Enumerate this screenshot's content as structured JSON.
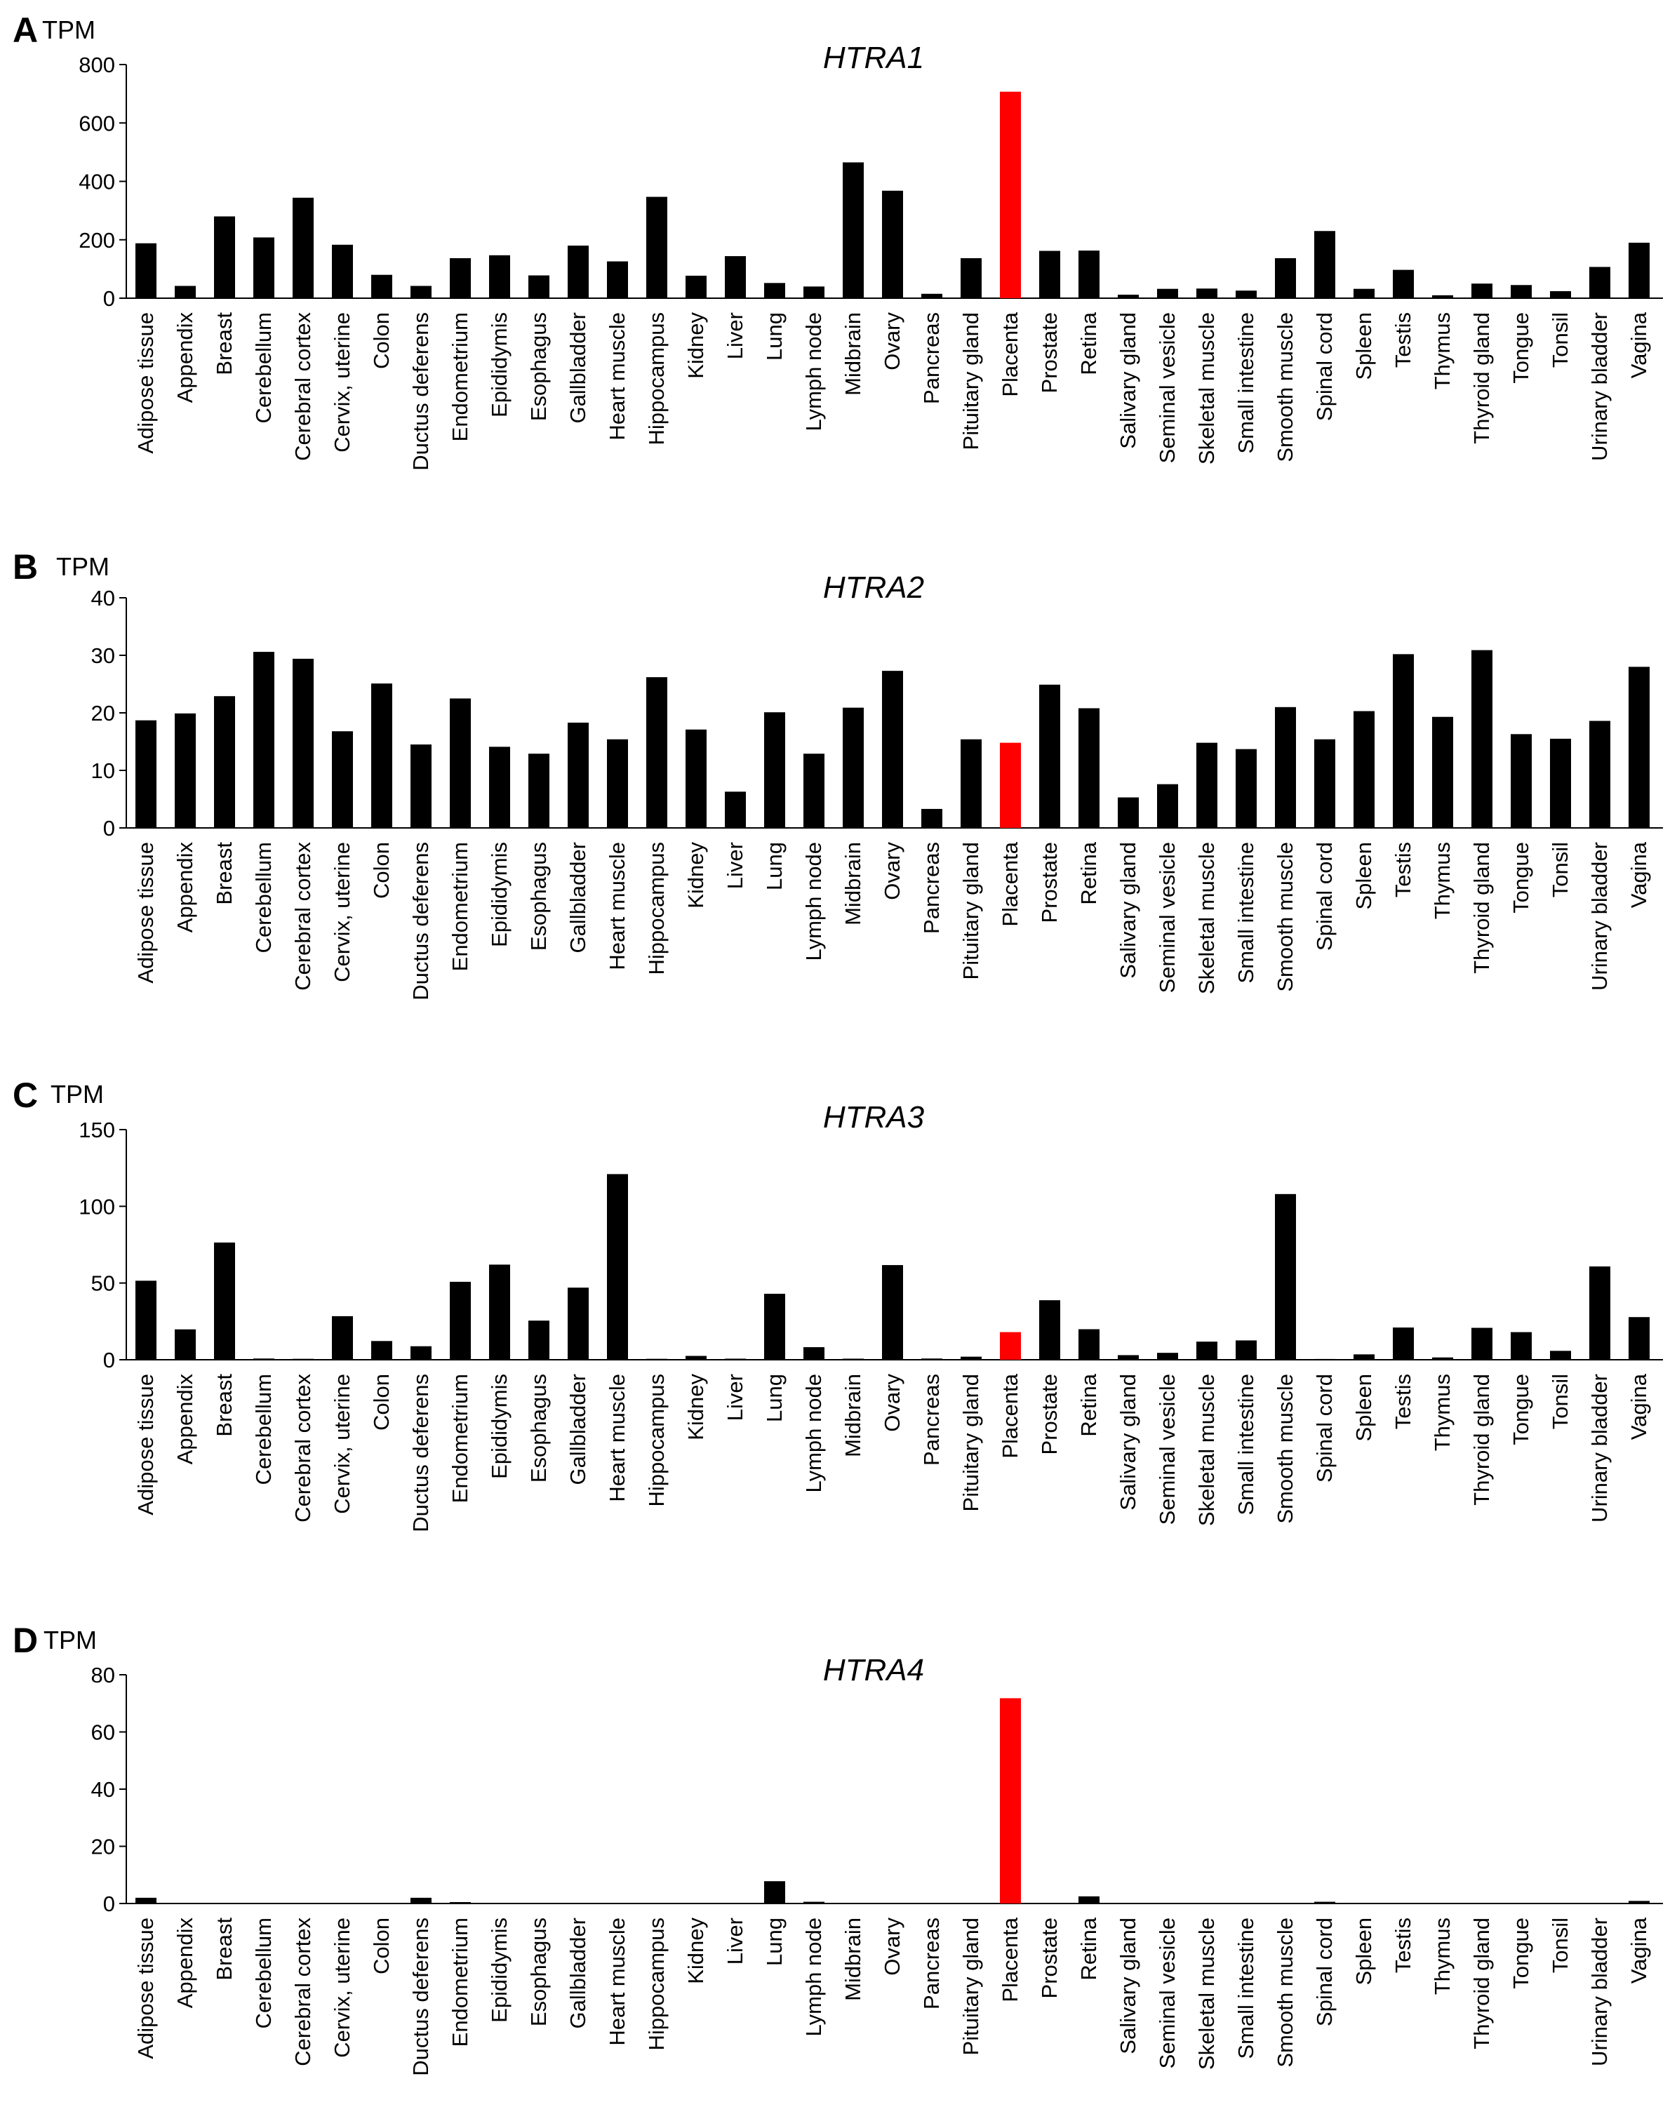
{
  "figure": {
    "categories": [
      "Adipose tissue",
      "Appendix",
      "Breast",
      "Cerebellum",
      "Cerebral cortex",
      "Cervix, uterine",
      "Colon",
      "Ductus deferens",
      "Endometrium",
      "Epididymis",
      "Esophagus",
      "Gallbladder",
      "Heart muscle",
      "Hippocampus",
      "Kidney",
      "Liver",
      "Lung",
      "Lymph node",
      "Midbrain",
      "Ovary",
      "Pancreas",
      "Pituitary gland",
      "Placenta",
      "Prostate",
      "Retina",
      "Salivary gland",
      "Seminal vesicle",
      "Skeletal muscle",
      "Small intestine",
      "Smooth muscle",
      "Spinal cord",
      "Spleen",
      "Testis",
      "Thymus",
      "Thyroid gland",
      "Tongue",
      "Tonsil",
      "Urinary bladder",
      "Vagina"
    ],
    "highlight_category": "Placenta",
    "colors": {
      "bar": "#000000",
      "highlight": "#ff0000",
      "axis": "#000000"
    }
  },
  "chart_data": [
    {
      "type": "bar",
      "panel": "A",
      "title": "HTRA1",
      "ylabel": "TPM",
      "xlabel": "",
      "ylim": [
        0,
        800
      ],
      "yticks": [
        0,
        200,
        400,
        600,
        800
      ],
      "values": [
        188,
        42,
        280,
        208,
        344,
        183,
        80,
        42,
        137,
        147,
        78,
        180,
        126,
        347,
        77,
        144,
        52,
        40,
        465,
        368,
        15,
        137,
        707,
        162,
        163,
        12,
        32,
        33,
        26,
        137,
        230,
        32,
        97,
        10,
        50,
        45,
        24,
        107,
        190
      ]
    },
    {
      "type": "bar",
      "panel": "B",
      "title": "HTRA2",
      "ylabel": "TPM",
      "xlabel": "",
      "ylim": [
        0,
        40
      ],
      "yticks": [
        0,
        10,
        20,
        30,
        40
      ],
      "values": [
        18.7,
        19.9,
        22.9,
        30.6,
        29.4,
        16.8,
        25.1,
        14.5,
        22.5,
        14.1,
        12.9,
        18.3,
        15.4,
        26.2,
        17.1,
        6.3,
        20.1,
        12.9,
        20.9,
        27.3,
        3.3,
        15.4,
        14.8,
        24.9,
        20.8,
        5.3,
        7.6,
        14.8,
        13.7,
        21.0,
        15.4,
        20.3,
        30.2,
        19.3,
        30.9,
        16.3,
        15.5,
        18.6,
        28.0
      ]
    },
    {
      "type": "bar",
      "panel": "C",
      "title": "HTRA3",
      "ylabel": "TPM",
      "xlabel": "",
      "ylim": [
        0,
        150
      ],
      "yticks": [
        0,
        50,
        100,
        150
      ],
      "values": [
        51.5,
        19.8,
        76.4,
        0.8,
        0.6,
        28.4,
        12.2,
        8.8,
        50.8,
        62.0,
        25.5,
        47.0,
        121.0,
        0.6,
        2.5,
        0.7,
        43.0,
        8.2,
        0.7,
        61.7,
        0.8,
        2.0,
        18.0,
        38.8,
        19.9,
        3.0,
        4.5,
        11.8,
        12.6,
        108.0,
        0.5,
        3.5,
        21.0,
        1.5,
        20.8,
        18.0,
        5.8,
        60.8,
        27.8
      ]
    },
    {
      "type": "bar",
      "panel": "D",
      "title": "HTRA4",
      "ylabel": "TPM",
      "xlabel": "",
      "ylim": [
        0,
        80
      ],
      "yticks": [
        0,
        20,
        40,
        60,
        80
      ],
      "values": [
        2.0,
        0.1,
        0.1,
        0.1,
        0.1,
        0.1,
        0.1,
        2.0,
        0.5,
        0.1,
        0.1,
        0.1,
        0.1,
        0.1,
        0.1,
        0.1,
        7.8,
        0.6,
        0.1,
        0.1,
        0.1,
        0.1,
        71.8,
        0.1,
        2.5,
        0.1,
        0.1,
        0.1,
        0.1,
        0.1,
        0.6,
        0.1,
        0.1,
        0.1,
        0.1,
        0.1,
        0.1,
        0.1,
        0.9
      ]
    }
  ]
}
